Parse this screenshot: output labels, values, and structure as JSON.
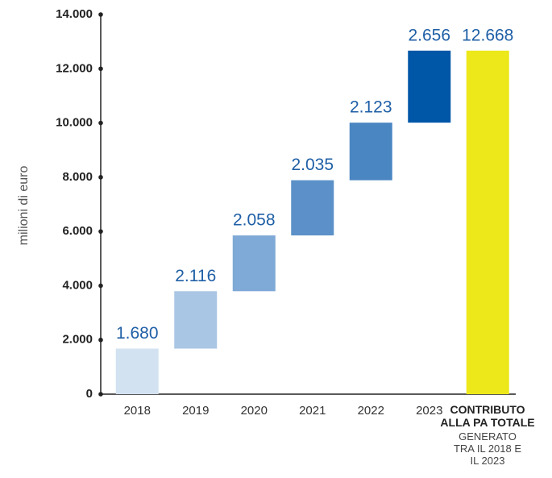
{
  "chart_data": {
    "type": "waterfall",
    "y_label": "milioni di euro",
    "categories": [
      "2018",
      "2019",
      "2020",
      "2021",
      "2022",
      "2023",
      "CONTRIBUTO ALLA PA TOTALE"
    ],
    "annotation": "GENERATO TRA IL 2018 E IL 2023",
    "values": [
      1680,
      2116,
      2058,
      2035,
      2123,
      2656,
      12668
    ],
    "value_labels": [
      "1.680",
      "2.116",
      "2.058",
      "2.035",
      "2.123",
      "2.656",
      "12.668"
    ],
    "totals": [
      false,
      false,
      false,
      false,
      false,
      false,
      true
    ],
    "colors": [
      "#d3e2f1",
      "#a9c6e4",
      "#7fa9d6",
      "#5b91c8",
      "#4a86c2",
      "#0057a8",
      "#ece81a"
    ],
    "label_color": "#1f5fa6",
    "ylim": [
      0,
      14000
    ],
    "yticks": [
      0,
      {
        "value": 2000,
        "label": "2.000"
      },
      {
        "value": 4000,
        "label": "4.000"
      },
      {
        "value": 6000,
        "label": "6.000"
      },
      {
        "value": 8000,
        "label": "8.000"
      },
      {
        "value": 10000,
        "label": "10.000"
      },
      {
        "value": 12000,
        "label": "12.000"
      },
      {
        "value": 14000,
        "label": "14.000"
      }
    ]
  }
}
